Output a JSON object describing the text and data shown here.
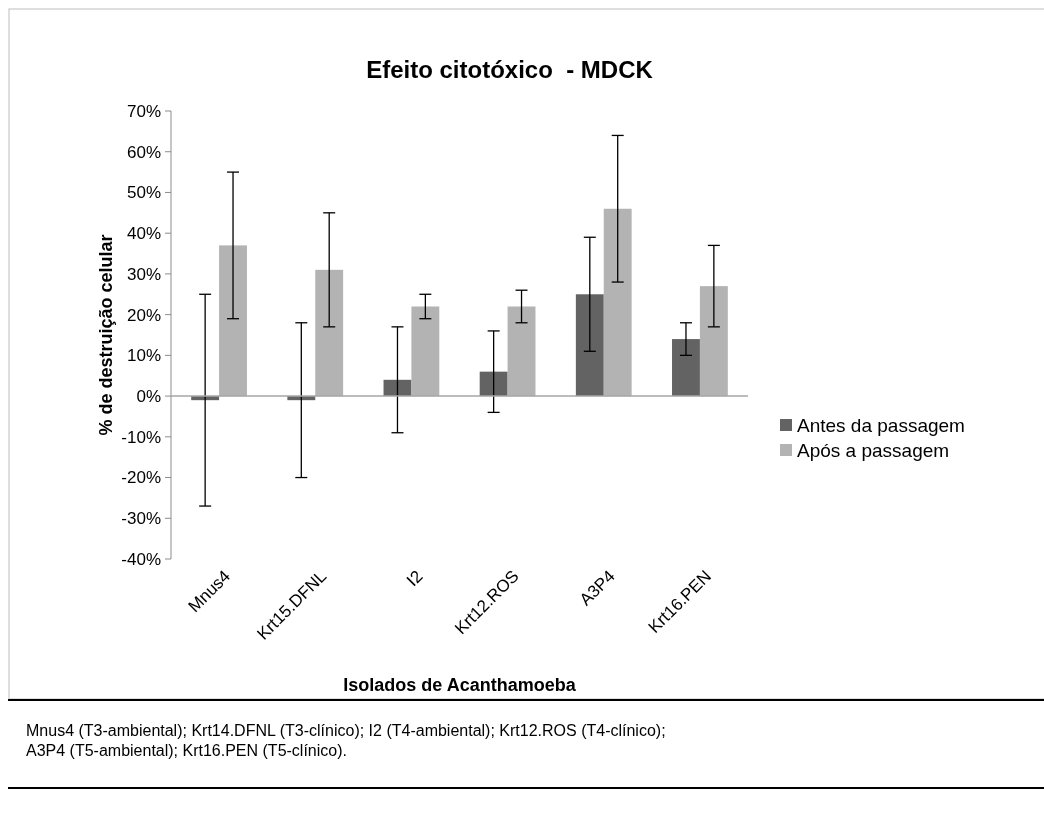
{
  "chart_data": {
    "type": "bar",
    "title": "Efeito citotóxico  - MDCK",
    "xlabel": "Isolados de Acanthamoeba",
    "ylabel": "% de destruição celular",
    "categories": [
      "Mnus4",
      "Krt15.DFNL",
      "I2",
      "Krt12.ROS",
      "A3P4",
      "Krt16.PEN"
    ],
    "series": [
      {
        "name": "Antes da passagem",
        "color": "#636363",
        "values": [
          -0.01,
          -0.01,
          0.04,
          0.06,
          0.25,
          0.14
        ],
        "errors": [
          0.26,
          0.19,
          0.13,
          0.1,
          0.14,
          0.04
        ]
      },
      {
        "name": "Após a passagem",
        "color": "#b3b3b3",
        "values": [
          0.37,
          0.31,
          0.22,
          0.22,
          0.46,
          0.27
        ],
        "errors": [
          0.18,
          0.14,
          0.03,
          0.04,
          0.18,
          0.1
        ]
      }
    ],
    "ylim": [
      -0.4,
      0.7
    ],
    "yticks": [
      {
        "value": -0.4,
        "label": "-40%"
      },
      {
        "value": -0.3,
        "label": "-30%"
      },
      {
        "value": -0.2,
        "label": "-20%"
      },
      {
        "value": -0.1,
        "label": "-10%"
      },
      {
        "value": 0,
        "label": "0%"
      },
      {
        "value": 0.1,
        "label": "10%"
      },
      {
        "value": 0.2,
        "label": "20%"
      },
      {
        "value": 0.3,
        "label": "30%"
      },
      {
        "value": 0.4,
        "label": "40%"
      },
      {
        "value": 0.5,
        "label": "50%"
      },
      {
        "value": 0.6,
        "label": "60%"
      },
      {
        "value": 0.7,
        "label": "70%"
      }
    ],
    "legend": "right",
    "annotations": [
      "Mnus4 (T3-ambiental); Krt14.DFNL (T3-clínico); I2 (T4-ambiental); Krt12.ROS (T4-clínico); A3P4 (T5-ambiental); Krt16.PEN (T5-clínico)."
    ]
  }
}
